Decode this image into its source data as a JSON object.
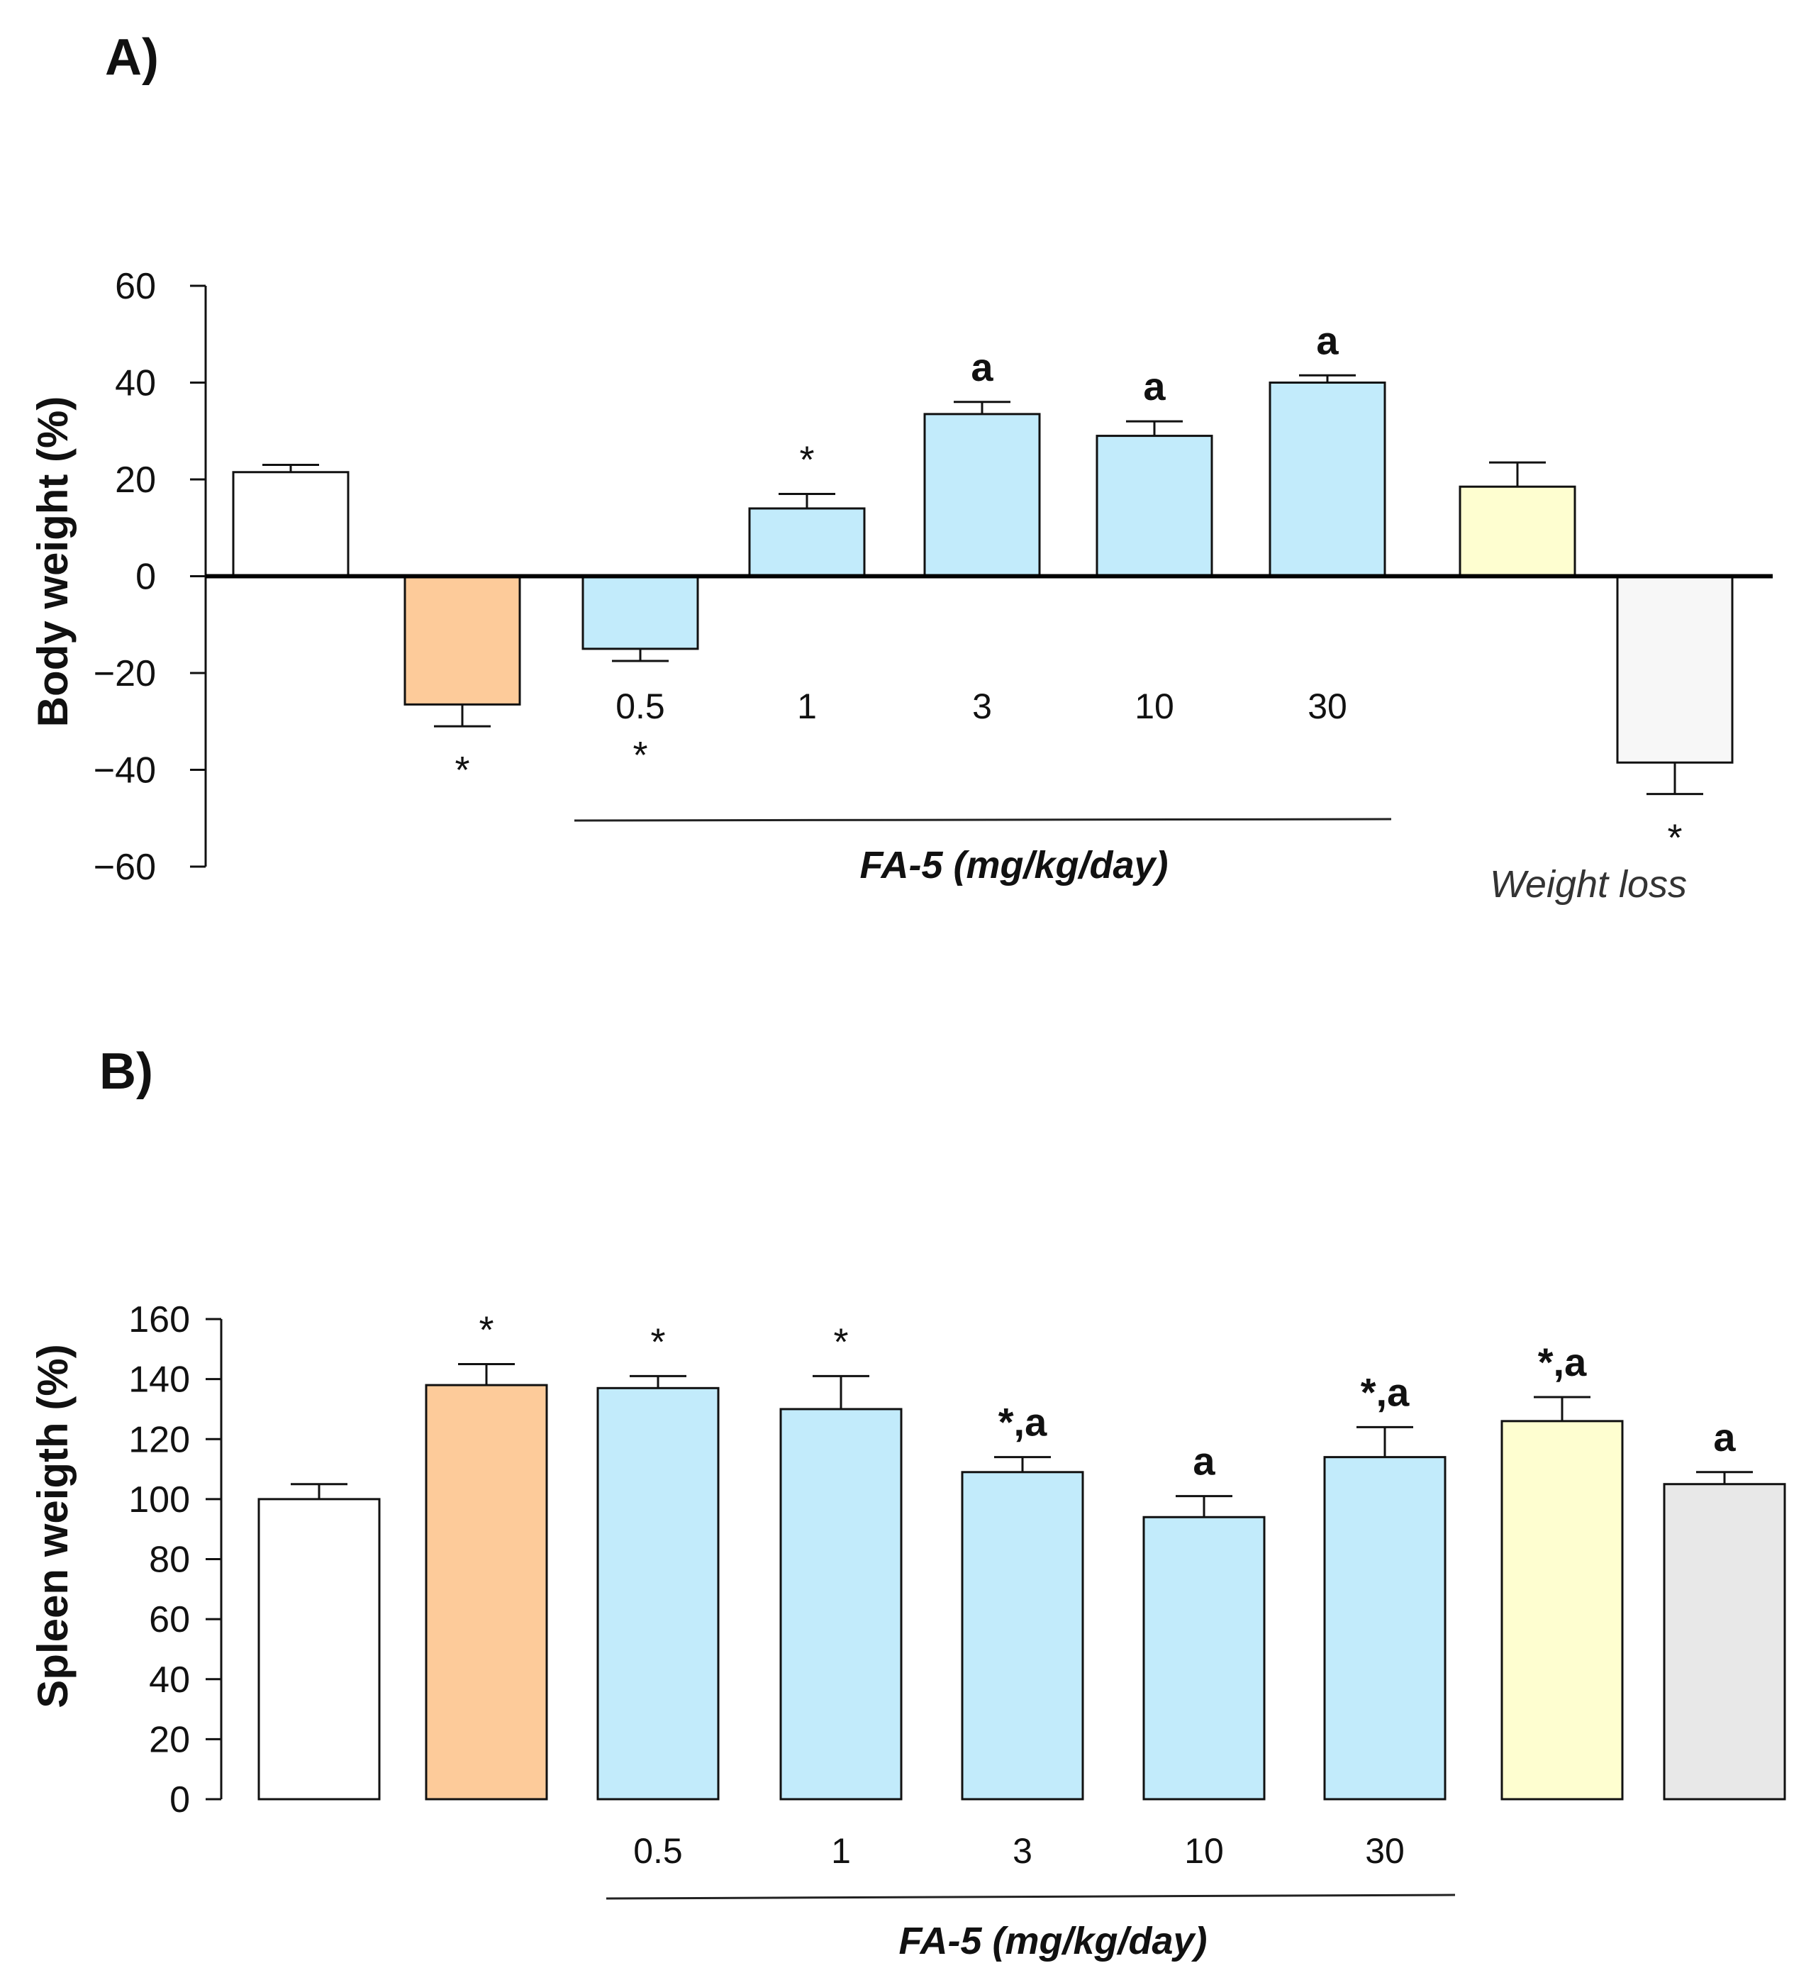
{
  "chart_data": [
    {
      "panel": "A)",
      "type": "bar",
      "ylabel": "Body weight (%)",
      "ylim": [
        -60,
        60
      ],
      "yticks": [
        "60",
        "40",
        "20",
        "0",
        "−20",
        "−40",
        "−60"
      ],
      "yticks_values": [
        60,
        40,
        20,
        0,
        -20,
        -40,
        -60
      ],
      "categories": [
        "",
        "",
        "0.5",
        "1",
        "3",
        "10",
        "30",
        "",
        ""
      ],
      "values": [
        21.5,
        -26.5,
        -15,
        14,
        33.5,
        29,
        40,
        18.5,
        -38.5
      ],
      "errors": [
        1.5,
        4.5,
        2.5,
        3,
        2.5,
        3,
        1.5,
        5,
        6.5
      ],
      "colors": [
        "#ffffff",
        "#fdcb9a",
        "#c2ebfb",
        "#c2ebfb",
        "#c2ebfb",
        "#c2ebfb",
        "#c2ebfb",
        "#fefed0",
        "#f7f7f7"
      ],
      "annotations": [
        "",
        "*",
        "*",
        "*",
        "a",
        "a",
        "a",
        "",
        "*"
      ],
      "group_label": "FA-5 (mg/kg/day)",
      "extra_label": "Weight loss"
    },
    {
      "panel": "B)",
      "type": "bar",
      "ylabel": "Spleen weigth (%)",
      "ylim": [
        0,
        160
      ],
      "yticks": [
        "160",
        "140",
        "120",
        "100",
        "80",
        "60",
        "40",
        "20",
        "0"
      ],
      "yticks_values": [
        160,
        140,
        120,
        100,
        80,
        60,
        40,
        20,
        0
      ],
      "categories": [
        "",
        "",
        "0.5",
        "1",
        "3",
        "10",
        "30",
        "",
        ""
      ],
      "values": [
        100,
        138,
        137,
        130,
        109,
        94,
        114,
        126,
        105
      ],
      "errors": [
        5,
        7,
        4,
        11,
        5,
        7,
        10,
        8,
        4
      ],
      "colors": [
        "#ffffff",
        "#fdcb9a",
        "#c2ebfb",
        "#c2ebfb",
        "#c2ebfb",
        "#c2ebfb",
        "#c2ebfb",
        "#fefed0",
        "#e8e8e8"
      ],
      "annotations": [
        "",
        "*",
        "*",
        "*",
        "*,a",
        "a",
        "*,a",
        "*,a",
        "a"
      ],
      "group_label": "FA-5 (mg/kg/day)"
    }
  ]
}
